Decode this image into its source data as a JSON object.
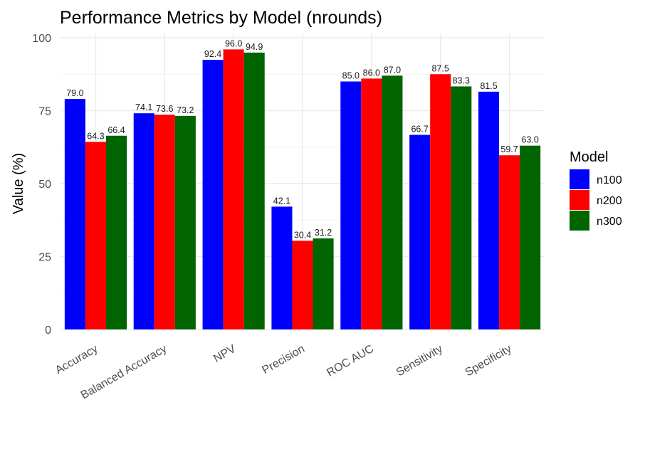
{
  "chart_data": {
    "type": "bar",
    "title": "Performance Metrics by Model (nrounds)",
    "xlabel": "",
    "ylabel": "Value (%)",
    "ylim": [
      0,
      100
    ],
    "yticks": [
      0,
      25,
      50,
      75,
      100
    ],
    "grid": true,
    "legend": {
      "title": "Model",
      "position": "right"
    },
    "categories": [
      "Accuracy",
      "Balanced Accuracy",
      "NPV",
      "Precision",
      "ROC AUC",
      "Sensitivity",
      "Specificity"
    ],
    "series": [
      {
        "name": "n100",
        "color": "#0000ff",
        "values": [
          79.0,
          74.1,
          92.4,
          42.1,
          85.0,
          66.7,
          81.5
        ]
      },
      {
        "name": "n200",
        "color": "#ff0000",
        "values": [
          64.3,
          73.6,
          96.0,
          30.4,
          86.0,
          87.5,
          59.7
        ]
      },
      {
        "name": "n300",
        "color": "#006400",
        "values": [
          66.4,
          73.2,
          94.9,
          31.2,
          87.0,
          83.3,
          63.0
        ]
      }
    ]
  }
}
